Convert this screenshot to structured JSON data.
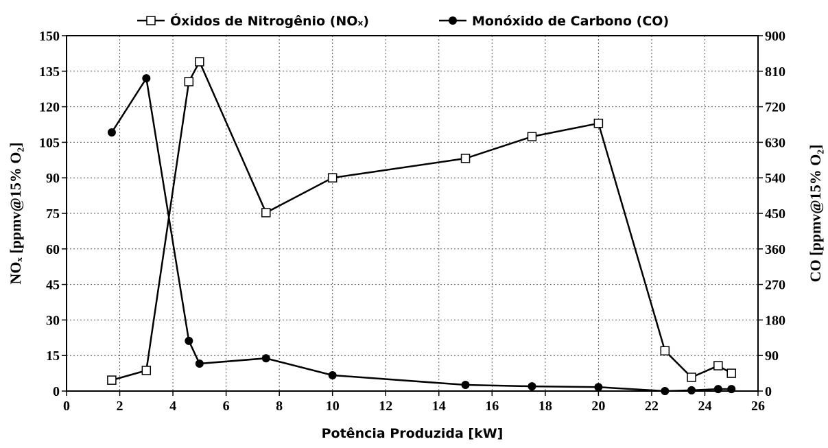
{
  "chart_data": {
    "type": "line",
    "x_label": "Potência Produzida [kW]",
    "y_label": "NOₓ [ppmv@15% O₂]",
    "y2_label": "CO [ppmv@15% O₂]",
    "xlim": [
      0,
      26
    ],
    "xticks": [
      0,
      2,
      4,
      6,
      8,
      10,
      12,
      14,
      16,
      18,
      20,
      22,
      24,
      26
    ],
    "ylim": [
      0,
      150
    ],
    "yticks": [
      0,
      15,
      30,
      45,
      60,
      75,
      90,
      105,
      120,
      135,
      150
    ],
    "y2lim": [
      0,
      900
    ],
    "y2ticks": [
      0,
      90,
      180,
      270,
      360,
      450,
      540,
      630,
      720,
      810,
      900
    ],
    "grid": true,
    "legend": "top",
    "series": [
      {
        "name": "Óxidos de Nitrogênio (NOₓ)",
        "color": "#000000",
        "marker": "square",
        "x": [
          1.7,
          3.0,
          4.6,
          5.0,
          7.5,
          10.0,
          15.0,
          17.5,
          20.0,
          22.5,
          23.5,
          24.5,
          25.0
        ],
        "values": [
          4.6,
          8.7,
          130.6,
          139,
          75.3,
          90,
          98.2,
          107.4,
          113,
          17,
          5.8,
          10.7,
          7.5
        ]
      },
      {
        "name": "Monóxido de Carbono (CO)",
        "color": "#000000",
        "marker": "circle",
        "axis": "y2",
        "x": [
          1.7,
          3.0,
          4.6,
          5.0,
          7.5,
          10.0,
          15.0,
          17.5,
          20.0,
          22.5,
          23.5,
          24.5,
          25.0
        ],
        "values": [
          655,
          792,
          127,
          69.5,
          83,
          40,
          15.6,
          12,
          10,
          0,
          2,
          5,
          5
        ]
      }
    ]
  }
}
